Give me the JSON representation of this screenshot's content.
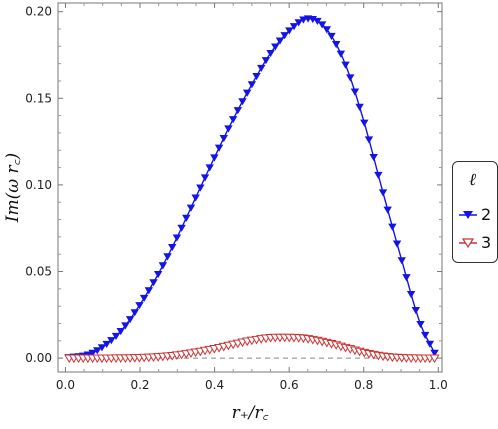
{
  "chart_data": {
    "type": "scatter",
    "xlabel": "r₊/r꜀",
    "ylabel": "Im(ω r꜀)",
    "xlim": [
      -0.02,
      1.01
    ],
    "ylim": [
      -0.008,
      0.205
    ],
    "x_ticks": [
      "0.0",
      "0.2",
      "0.4",
      "0.6",
      "0.8",
      "1.0"
    ],
    "x_tick_values": [
      0.0,
      0.2,
      0.4,
      0.6,
      0.8,
      1.0
    ],
    "y_ticks": [
      "0.00",
      "0.05",
      "0.10",
      "0.15",
      "0.20"
    ],
    "y_tick_values": [
      0.0,
      0.05,
      0.1,
      0.15,
      0.2
    ],
    "legend": {
      "title": "ℓ",
      "placement": "right-outside"
    },
    "reference_line": {
      "y": 0.0,
      "style": "dashed"
    },
    "series": [
      {
        "name": "2",
        "color": "#1414e6",
        "marker": "filled-down-triangle",
        "x": [
          0.01,
          0.06,
          0.1,
          0.15,
          0.2,
          0.25,
          0.3,
          0.35,
          0.4,
          0.45,
          0.5,
          0.55,
          0.6,
          0.65,
          0.7,
          0.75,
          0.8,
          0.85,
          0.9,
          0.95,
          0.99
        ],
        "y": [
          0.0005,
          0.002,
          0.0065,
          0.016,
          0.031,
          0.049,
          0.07,
          0.093,
          0.116,
          0.138,
          0.158,
          0.176,
          0.189,
          0.196,
          0.19,
          0.17,
          0.137,
          0.097,
          0.058,
          0.021,
          0.003
        ]
      },
      {
        "name": "3",
        "color": "#cc3333",
        "marker": "open-down-triangle",
        "x": [
          0.01,
          0.1,
          0.2,
          0.3,
          0.4,
          0.45,
          0.5,
          0.55,
          0.58,
          0.62,
          0.65,
          0.7,
          0.75,
          0.8,
          0.85,
          0.9,
          0.95,
          0.99
        ],
        "y": [
          0.0,
          0.0,
          0.0003,
          0.0018,
          0.0055,
          0.008,
          0.0103,
          0.0118,
          0.012,
          0.0118,
          0.0112,
          0.0091,
          0.0062,
          0.0033,
          0.0012,
          0.0003,
          0.0,
          0.0
        ]
      }
    ]
  }
}
